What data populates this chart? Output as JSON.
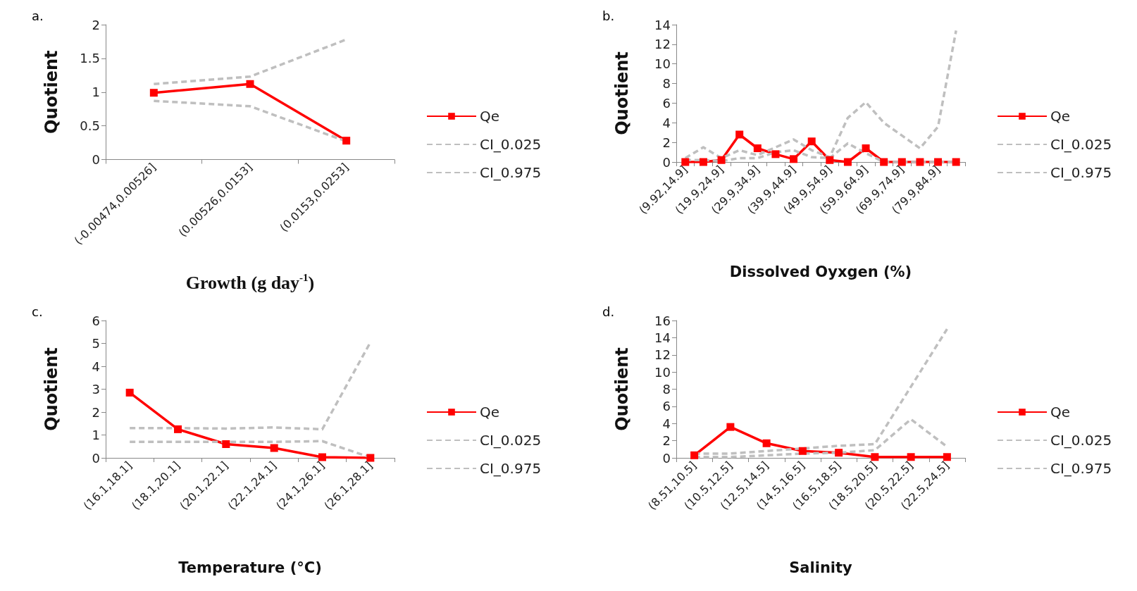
{
  "chart_data": [
    {
      "type": "line",
      "title": "a.",
      "xlabel": "Growth (g day$^{-1}$)",
      "ylabel": "Quotient",
      "categories": [
        "(-0.00474,0.00526]",
        "(0.00526,0.0153]",
        "(0.0153,0.0253]"
      ],
      "ylim": [
        0,
        2
      ],
      "yticks": [
        0,
        0.5,
        1,
        1.5,
        2
      ],
      "grid": false,
      "legend": "right",
      "marker": "square",
      "series": [
        {
          "name": "Qe",
          "color": "#ff0000",
          "values": [
            0.99,
            1.12,
            0.28
          ]
        },
        {
          "name": "CI_0.025",
          "color": "#bfbfbf",
          "line_style": "dashed",
          "marker": "none",
          "values": [
            0.87,
            0.79,
            0.27
          ]
        },
        {
          "name": "CI_0.975",
          "color": "#bfbfbf",
          "line_style": "dashed",
          "marker": "none",
          "values": [
            1.12,
            1.23,
            1.78
          ]
        }
      ]
    },
    {
      "type": "line",
      "title": "b.",
      "xlabel": "Dissolved Oyxgen (%)",
      "ylabel": "Quotient",
      "categories": [
        "(9.92,14.9]",
        null,
        "(19.9,24.9]",
        null,
        "(29.9,34.9]",
        null,
        "(39.9,44.9]",
        null,
        "(49.9,54.9]",
        null,
        "(59.9,64.9]",
        null,
        "(69.9,74.9]",
        null,
        "(79.9,84.9]",
        null
      ],
      "ylim": [
        0,
        14
      ],
      "yticks": [
        0,
        2,
        4,
        6,
        8,
        10,
        12,
        14
      ],
      "grid": false,
      "legend": "right",
      "marker": "square",
      "series": [
        {
          "name": "Qe",
          "color": "#ff0000",
          "values": [
            0,
            0,
            0.2,
            2.8,
            1.4,
            0.8,
            0.3,
            2.1,
            0.2,
            0,
            1.4,
            0,
            0,
            0,
            0,
            0
          ]
        },
        {
          "name": "CI_0.025",
          "color": "#bfbfbf",
          "line_style": "dashed",
          "marker": "none",
          "values": [
            0.2,
            0.2,
            0.1,
            0.4,
            0.4,
            1.0,
            1.2,
            0.5,
            0.4,
            1.9,
            0.9,
            0,
            0,
            0,
            0,
            0
          ]
        },
        {
          "name": "CI_0.975",
          "color": "#bfbfbf",
          "line_style": "dashed",
          "marker": "none",
          "values": [
            0.4,
            1.5,
            0.4,
            1.2,
            0.7,
            1.5,
            2.3,
            1.2,
            0.5,
            4.5,
            6.1,
            4.0,
            2.7,
            1.4,
            3.6,
            13.4
          ]
        }
      ]
    },
    {
      "type": "line",
      "title": "c.",
      "xlabel": "Temperature (°C)",
      "ylabel": "Quotient",
      "categories": [
        "(16.1,18.1]",
        "(18.1,20.1]",
        "(20.1,22.1]",
        "(22.1,24.1]",
        "(24.1,26.1]",
        "(26.1,28.1]"
      ],
      "ylim": [
        0,
        6
      ],
      "yticks": [
        0,
        1,
        2,
        3,
        4,
        5,
        6
      ],
      "grid": false,
      "legend": "right",
      "marker": "square",
      "series": [
        {
          "name": "Qe",
          "color": "#ff0000",
          "values": [
            2.85,
            1.25,
            0.6,
            0.43,
            0.03,
            0
          ]
        },
        {
          "name": "CI_0.025",
          "color": "#bfbfbf",
          "line_style": "dashed",
          "marker": "none",
          "values": [
            0.7,
            0.7,
            0.7,
            0.7,
            0.73,
            0.02
          ]
        },
        {
          "name": "CI_0.975",
          "color": "#bfbfbf",
          "line_style": "dashed",
          "marker": "none",
          "values": [
            1.3,
            1.3,
            1.28,
            1.33,
            1.25,
            5.05
          ]
        }
      ]
    },
    {
      "type": "line",
      "title": "d.",
      "xlabel": "Salinity",
      "ylabel": "Quotient",
      "categories": [
        "(8.51,10.5]",
        "(10.5,12.5]",
        "(12.5,14.5]",
        "(14.5,16.5]",
        "(16.5,18.5]",
        "(18.5,20.5]",
        "(20.5,22.5]",
        "(22.5,24.5]"
      ],
      "ylim": [
        0,
        16
      ],
      "yticks": [
        0,
        2,
        4,
        6,
        8,
        10,
        12,
        14,
        16
      ],
      "grid": false,
      "legend": "right",
      "marker": "square",
      "series": [
        {
          "name": "Qe",
          "color": "#ff0000",
          "values": [
            0.3,
            3.6,
            1.7,
            0.8,
            0.6,
            0.1,
            0.1,
            0.1
          ]
        },
        {
          "name": "CI_0.025",
          "color": "#bfbfbf",
          "line_style": "dashed",
          "marker": "none",
          "values": [
            0.1,
            0.1,
            0.3,
            0.5,
            0.6,
            0.9,
            4.5,
            1.3
          ]
        },
        {
          "name": "CI_0.975",
          "color": "#bfbfbf",
          "line_style": "dashed",
          "marker": "none",
          "values": [
            0.5,
            0.5,
            0.8,
            1.1,
            1.4,
            1.6,
            8.3,
            15
          ]
        }
      ]
    }
  ]
}
